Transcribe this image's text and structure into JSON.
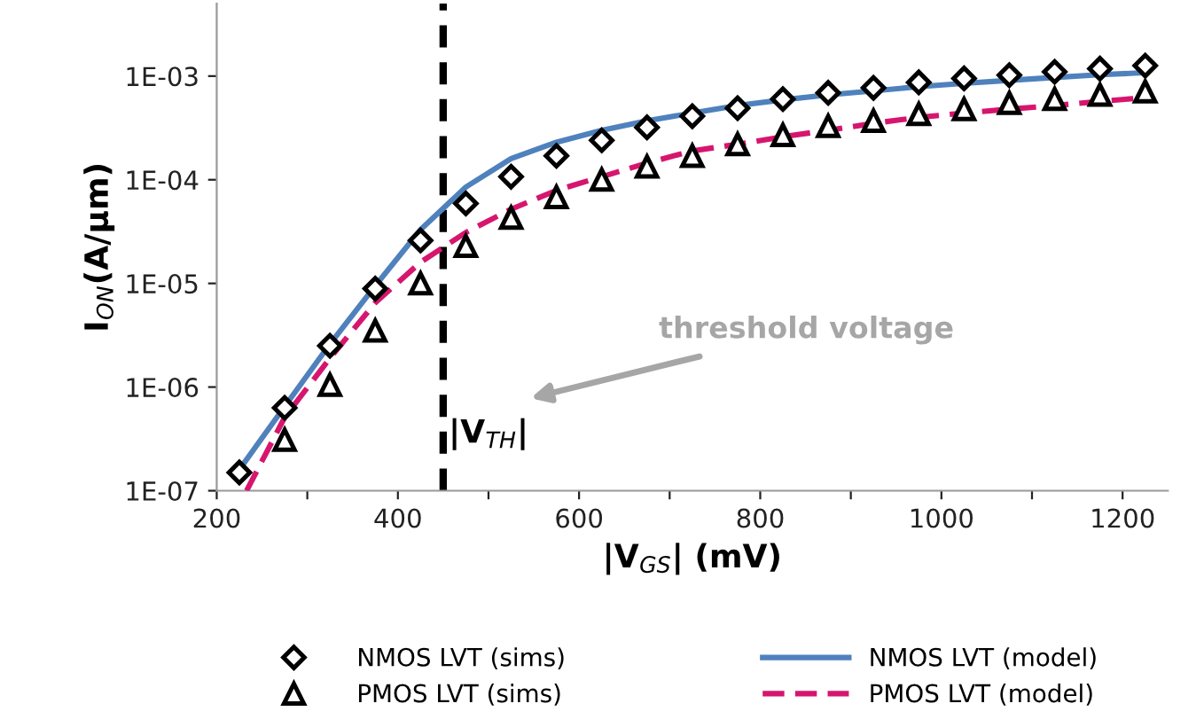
{
  "chart_data": {
    "type": "scatter",
    "xlabel": "|V$_{GS}$| (mV)",
    "ylabel": "I$_{ON}$(A/µm)",
    "log": "y",
    "grid": false,
    "legend": "bottom",
    "x": [
      225,
      275,
      325,
      375,
      425,
      475,
      525,
      575,
      625,
      675,
      725,
      775,
      825,
      875,
      925,
      975,
      1025,
      1075,
      1125,
      1175,
      1225
    ],
    "xlim": [
      200,
      1250
    ],
    "xticks": [
      200,
      {
        "value": 300,
        "label": null
      },
      400,
      {
        "value": 500,
        "label": null
      },
      600,
      {
        "value": 700,
        "label": null
      },
      800,
      {
        "value": 900,
        "label": null
      },
      1000,
      {
        "value": 1100,
        "label": null
      },
      1200
    ],
    "ylim": [
      1e-07,
      0.005
    ],
    "yticks": [
      {
        "value": 1e-07,
        "label": "1E-07"
      },
      {
        "value": 1e-06,
        "label": "1E-06"
      },
      {
        "value": 1e-05,
        "label": "1E-05"
      },
      {
        "value": 0.0001,
        "label": "1E-04"
      },
      {
        "value": 0.001,
        "label": "1E-03"
      }
    ],
    "series": [
      {
        "name": "NMOS LVT (sims)",
        "marker": "diamond",
        "color": "#000000",
        "values": [
          1.5e-07,
          6.3e-07,
          2.5e-06,
          8.9e-06,
          2.6e-05,
          5.9e-05,
          0.000107,
          0.00017,
          0.00024,
          0.00032,
          0.00041,
          0.00049,
          0.0006,
          0.00069,
          0.00077,
          0.00087,
          0.00095,
          0.00102,
          0.0011,
          0.00118,
          0.00126
        ]
      },
      {
        "name": "PMOS LVT (sims)",
        "marker": "triangle",
        "color": "#000000",
        "values": [
          null,
          3.1e-07,
          1.05e-06,
          3.5e-06,
          1e-05,
          2.3e-05,
          4.3e-05,
          6.8e-05,
          0.0001,
          0.000134,
          0.00017,
          0.00022,
          0.00027,
          0.00033,
          0.00037,
          0.00043,
          0.00048,
          0.00055,
          0.0006,
          0.00066,
          0.00071
        ]
      },
      {
        "name": "NMOS LVT (model)",
        "type": "line",
        "line_style": "solid",
        "color": "#4f81bd",
        "values": [
          1.6e-07,
          6.5e-07,
          2.6e-06,
          9.5e-06,
          3.3e-05,
          8.5e-05,
          0.00016,
          0.00023,
          0.0003,
          0.00037,
          0.00044,
          0.00052,
          0.00059,
          0.00066,
          0.00072,
          0.00079,
          0.00085,
          0.00091,
          0.00097,
          0.00103,
          0.00108
        ]
      },
      {
        "name": "PMOS LVT (model)",
        "type": "line",
        "line_style": "dashed",
        "color": "#d6166e",
        "x": [
          233,
          275,
          325,
          375,
          425,
          475,
          525,
          575,
          625,
          675,
          725,
          775,
          825,
          875,
          925,
          975,
          1025,
          1075,
          1125,
          1175,
          1225
        ],
        "values": [
          1e-07,
          5.1e-07,
          1.9e-06,
          6.5e-06,
          1.6e-05,
          3.1e-05,
          5.2e-05,
          7.9e-05,
          0.000107,
          0.000145,
          0.00019,
          0.00022,
          0.00026,
          0.0003,
          0.00035,
          0.0004,
          0.00044,
          0.00048,
          0.00052,
          0.00057,
          0.00062
        ]
      }
    ],
    "ref_lines": [
      {
        "axis": "x",
        "value": 450,
        "label": "|V$_{TH}$|",
        "color": "#000000",
        "line_style": "dashed"
      }
    ],
    "annotations": [
      "threshold voltage"
    ]
  }
}
